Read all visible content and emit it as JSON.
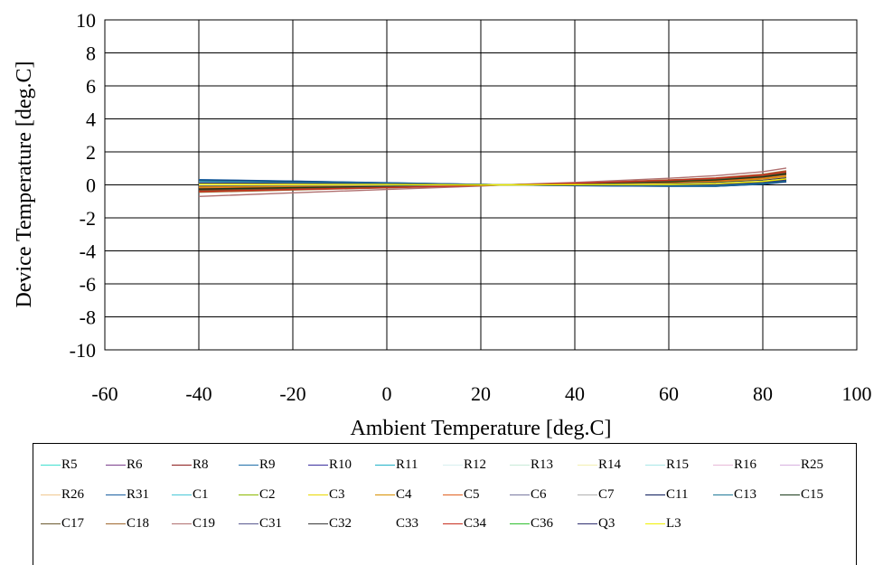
{
  "chart_data": {
    "type": "line",
    "title": "",
    "xlabel": "Ambient Temperature  [deg.C]",
    "ylabel": "Device Temperature  [deg.C]",
    "xlim": [
      -60,
      100
    ],
    "ylim": [
      -10,
      10
    ],
    "x_ticks": [
      -60,
      -40,
      -20,
      0,
      20,
      40,
      60,
      80,
      100
    ],
    "y_ticks": [
      -10,
      -8,
      -6,
      -4,
      -2,
      0,
      2,
      4,
      6,
      8,
      10
    ],
    "grid": true,
    "legend_position": "bottom",
    "x": [
      -40,
      -20,
      0,
      20,
      25,
      40,
      60,
      70,
      80,
      85
    ],
    "series": [
      {
        "name": "R5",
        "color": "#40e0d0",
        "values": [
          0.2,
          0.14,
          0.08,
          0.02,
          0,
          -0.02,
          -0.05,
          -0.05,
          0.1,
          0.25
        ]
      },
      {
        "name": "R6",
        "color": "#7b3f8c",
        "values": [
          -0.1,
          -0.06,
          -0.03,
          -0.01,
          0,
          0.04,
          0.12,
          0.2,
          0.35,
          0.5
        ]
      },
      {
        "name": "R8",
        "color": "#8b1a1a",
        "values": [
          -0.3,
          -0.2,
          -0.12,
          -0.03,
          0,
          0.08,
          0.22,
          0.32,
          0.52,
          0.7
        ]
      },
      {
        "name": "R9",
        "color": "#1f6fa8",
        "values": [
          0.3,
          0.22,
          0.12,
          0.03,
          0,
          -0.04,
          -0.08,
          -0.08,
          0.05,
          0.2
        ]
      },
      {
        "name": "R10",
        "color": "#3a2f9e",
        "values": [
          0.28,
          0.2,
          0.11,
          0.03,
          0,
          -0.04,
          -0.07,
          -0.07,
          0.06,
          0.22
        ]
      },
      {
        "name": "R11",
        "color": "#20b2c8",
        "values": [
          0.25,
          0.18,
          0.1,
          0.02,
          0,
          -0.03,
          -0.06,
          -0.06,
          0.08,
          0.24
        ]
      },
      {
        "name": "R12",
        "color": "#d8f0f0",
        "values": [
          0.15,
          0.1,
          0.06,
          0.01,
          0,
          -0.01,
          -0.02,
          0.0,
          0.15,
          0.3
        ]
      },
      {
        "name": "R13",
        "color": "#c8ead8",
        "values": [
          0.12,
          0.08,
          0.05,
          0.01,
          0,
          -0.01,
          -0.01,
          0.02,
          0.18,
          0.32
        ]
      },
      {
        "name": "R14",
        "color": "#f2f0b0",
        "values": [
          0.1,
          0.07,
          0.04,
          0.01,
          0,
          0.0,
          0.02,
          0.05,
          0.2,
          0.35
        ]
      },
      {
        "name": "R15",
        "color": "#a8e8e8",
        "values": [
          0.18,
          0.12,
          0.07,
          0.02,
          0,
          -0.02,
          -0.03,
          -0.02,
          0.12,
          0.28
        ]
      },
      {
        "name": "R16",
        "color": "#e8b8d8",
        "values": [
          -0.05,
          -0.03,
          -0.02,
          0.0,
          0,
          0.03,
          0.08,
          0.14,
          0.28,
          0.42
        ]
      },
      {
        "name": "R25",
        "color": "#d8b0e0",
        "values": [
          -0.08,
          -0.05,
          -0.03,
          -0.01,
          0,
          0.03,
          0.1,
          0.16,
          0.3,
          0.45
        ]
      },
      {
        "name": "R26",
        "color": "#f0c890",
        "values": [
          -0.15,
          -0.1,
          -0.06,
          -0.01,
          0,
          0.04,
          0.14,
          0.22,
          0.38,
          0.55
        ]
      },
      {
        "name": "R31",
        "color": "#1a5fa0",
        "values": [
          0.32,
          0.23,
          0.13,
          0.03,
          0,
          -0.05,
          -0.09,
          -0.09,
          0.04,
          0.18
        ]
      },
      {
        "name": "C1",
        "color": "#48c8d8",
        "values": [
          0.22,
          0.16,
          0.09,
          0.02,
          0,
          -0.03,
          -0.05,
          -0.04,
          0.1,
          0.26
        ]
      },
      {
        "name": "C2",
        "color": "#8cb800",
        "values": [
          0.05,
          0.03,
          0.02,
          0.0,
          0,
          0.01,
          0.04,
          0.08,
          0.22,
          0.38
        ]
      },
      {
        "name": "C3",
        "color": "#e8d800",
        "values": [
          0.02,
          0.01,
          0.01,
          0.0,
          0,
          0.01,
          0.05,
          0.1,
          0.24,
          0.4
        ]
      },
      {
        "name": "C4",
        "color": "#d89000",
        "values": [
          -0.12,
          -0.08,
          -0.05,
          -0.01,
          0,
          0.04,
          0.12,
          0.2,
          0.36,
          0.52
        ]
      },
      {
        "name": "C5",
        "color": "#e06020",
        "values": [
          -0.2,
          -0.14,
          -0.08,
          -0.02,
          0,
          0.06,
          0.17,
          0.26,
          0.44,
          0.62
        ]
      },
      {
        "name": "C6",
        "color": "#7878a0",
        "values": [
          0.08,
          0.05,
          0.03,
          0.01,
          0,
          0.0,
          0.02,
          0.06,
          0.2,
          0.34
        ]
      },
      {
        "name": "C7",
        "color": "#b0b0b0",
        "values": [
          -0.02,
          -0.01,
          -0.01,
          0.0,
          0,
          0.02,
          0.06,
          0.12,
          0.26,
          0.4
        ]
      },
      {
        "name": "C11",
        "color": "#0a1a5a",
        "values": [
          0.26,
          0.19,
          0.1,
          0.02,
          0,
          -0.04,
          -0.06,
          -0.06,
          0.07,
          0.22
        ]
      },
      {
        "name": "C13",
        "color": "#207898",
        "values": [
          0.24,
          0.17,
          0.1,
          0.02,
          0,
          -0.03,
          -0.06,
          -0.05,
          0.09,
          0.24
        ]
      },
      {
        "name": "C15",
        "color": "#1a3a1a",
        "values": [
          -0.25,
          -0.17,
          -0.1,
          -0.02,
          0,
          0.07,
          0.2,
          0.3,
          0.48,
          0.66
        ]
      },
      {
        "name": "C17",
        "color": "#6b5a30",
        "values": [
          -0.35,
          -0.24,
          -0.14,
          -0.04,
          0,
          0.09,
          0.25,
          0.36,
          0.56,
          0.75
        ]
      },
      {
        "name": "C18",
        "color": "#a06830",
        "values": [
          -0.45,
          -0.31,
          -0.18,
          -0.05,
          0,
          0.11,
          0.3,
          0.42,
          0.64,
          0.85
        ]
      },
      {
        "name": "C19",
        "color": "#b07070",
        "values": [
          -0.7,
          -0.48,
          -0.28,
          -0.07,
          0,
          0.15,
          0.4,
          0.56,
          0.8,
          1.02
        ]
      },
      {
        "name": "C31",
        "color": "#5a5a90",
        "values": [
          0.1,
          0.07,
          0.04,
          0.01,
          0,
          0.0,
          0.01,
          0.04,
          0.18,
          0.32
        ]
      },
      {
        "name": "C32",
        "color": "#3a3a3a",
        "values": [
          -0.05,
          -0.03,
          -0.02,
          0.0,
          0,
          0.02,
          0.07,
          0.13,
          0.27,
          0.42
        ]
      },
      {
        "name": "C33",
        "color": "#ffffff",
        "values": [
          0.0,
          0.0,
          0.0,
          0.0,
          0,
          0.01,
          0.04,
          0.09,
          0.22,
          0.36
        ]
      },
      {
        "name": "C34",
        "color": "#c83020",
        "values": [
          -0.4,
          -0.28,
          -0.16,
          -0.04,
          0,
          0.1,
          0.28,
          0.4,
          0.6,
          0.8
        ]
      },
      {
        "name": "C36",
        "color": "#30c030",
        "values": [
          0.06,
          0.04,
          0.02,
          0.0,
          0,
          0.0,
          0.02,
          0.06,
          0.2,
          0.34
        ]
      },
      {
        "name": "Q3",
        "color": "#303070",
        "values": [
          0.12,
          0.09,
          0.05,
          0.01,
          0,
          -0.01,
          0.0,
          0.03,
          0.16,
          0.3
        ]
      },
      {
        "name": "L3",
        "color": "#f0f000",
        "values": [
          0.04,
          0.03,
          0.02,
          0.0,
          0,
          0.01,
          0.03,
          0.07,
          0.21,
          0.36
        ]
      }
    ]
  }
}
